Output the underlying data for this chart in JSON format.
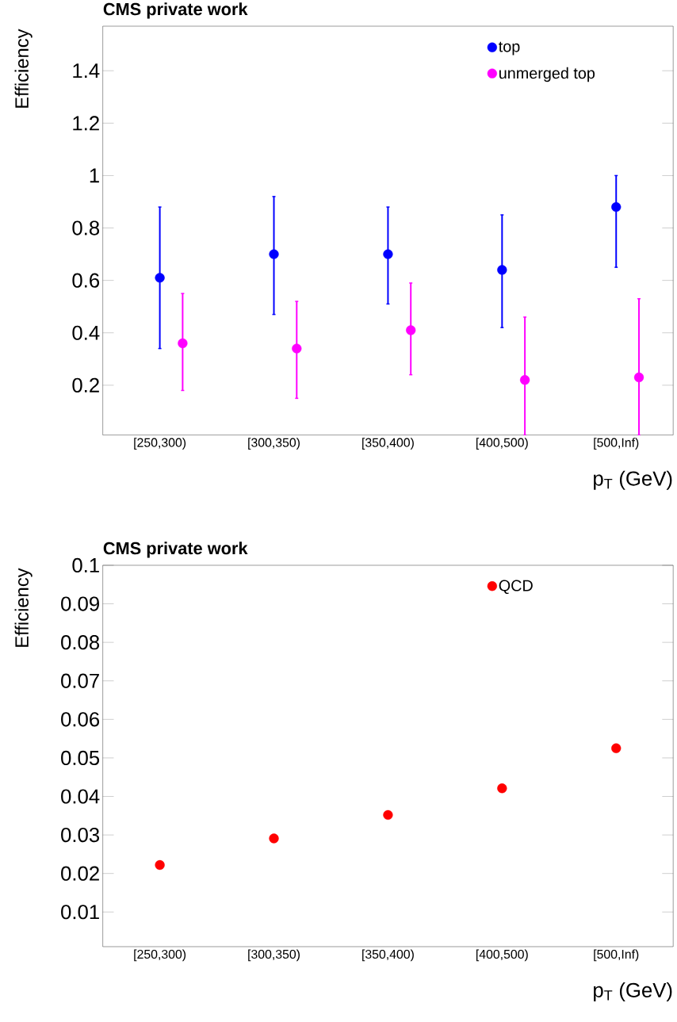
{
  "chart_data": [
    {
      "type": "scatter",
      "title": "CMS private work",
      "xlabel": "p$_{T}$ (GeV)",
      "ylabel": "Efficiency",
      "categories": [
        "[250,300)",
        "[300,350)",
        "[350,400)",
        "[400,500)",
        "[500,Inf)"
      ],
      "series": [
        {
          "name": "top",
          "color": "#0000ff",
          "values": [
            0.61,
            0.7,
            0.7,
            0.64,
            0.88
          ],
          "errors": [
            [
              0.34,
              0.88
            ],
            [
              0.47,
              0.92
            ],
            [
              0.51,
              0.88
            ],
            [
              0.42,
              0.85
            ],
            [
              0.65,
              1.0
            ]
          ]
        },
        {
          "name": "unmerged top",
          "color": "#ff00ff",
          "values": [
            0.36,
            0.34,
            0.41,
            0.22,
            0.23
          ],
          "errors": [
            [
              0.18,
              0.55
            ],
            [
              0.15,
              0.52
            ],
            [
              0.24,
              0.59
            ],
            [
              0.01,
              0.46
            ],
            [
              0.01,
              0.53
            ]
          ]
        }
      ],
      "ylim": [
        0.01,
        1.57
      ],
      "yticks": [
        0.2,
        0.4,
        0.6,
        0.8,
        1,
        1.2,
        1.4
      ],
      "legend": "top right",
      "marker": "circle"
    },
    {
      "type": "scatter",
      "title": "CMS private work",
      "xlabel": "p$_{T}$ (GeV)",
      "ylabel": "Efficiency",
      "categories": [
        "[250,300)",
        "[300,350)",
        "[350,400)",
        "[400,500)",
        "[500,Inf)"
      ],
      "series": [
        {
          "name": "QCD",
          "color": "#ff0000",
          "values": [
            0.0222,
            0.0291,
            0.0352,
            0.0421,
            0.0525
          ]
        }
      ],
      "ylim": [
        0.001,
        0.1
      ],
      "yticks": [
        0.01,
        0.02,
        0.03,
        0.04,
        0.05,
        0.06,
        0.07,
        0.08,
        0.09,
        0.1
      ],
      "legend": "top right",
      "marker": "circle"
    }
  ]
}
